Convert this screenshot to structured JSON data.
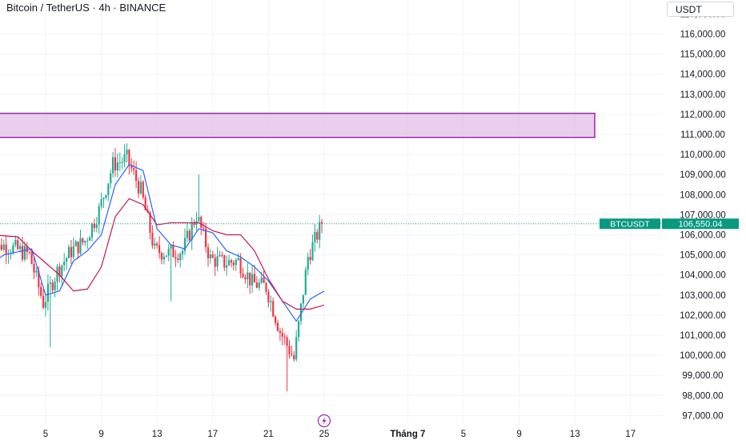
{
  "header": {
    "symbol_title": "Bitcoin / TetherUS · 4h · BINANCE",
    "currency": "USDT"
  },
  "colors": {
    "up": "#22ab94",
    "down": "#f23645",
    "fast_line": "#2962ff",
    "slow_line": "#c2185b",
    "zone_fill": "#e1bee7",
    "zone_border": "#9c27b0",
    "price_tag": "#089981"
  },
  "price_tag": {
    "label": "BTCUSDT",
    "value": "106,550.04",
    "price": 106550
  },
  "resistance_zone": {
    "from_price": 110850,
    "to_price": 112050,
    "from_date": "06-01",
    "to_date": "07-15"
  },
  "chart_data": {
    "type": "candlestick",
    "timeframe": "4h",
    "grid": true,
    "y_axis": {
      "ylim": [
        96500,
        117000
      ],
      "ticks": [
        "97,000.00",
        "98,000.00",
        "99,000.00",
        "100,000.00",
        "101,000.00",
        "102,000.00",
        "103,000.00",
        "104,000.00",
        "105,000.00",
        "106,000.00",
        "107,000.00",
        "108,000.00",
        "109,000.00",
        "110,000.00",
        "111,000.00",
        "112,000.00",
        "113,000.00",
        "114,000.00",
        "115,000.00",
        "116,000.00"
      ],
      "tick_values": [
        97000,
        98000,
        99000,
        100000,
        101000,
        102000,
        103000,
        104000,
        105000,
        106000,
        107000,
        108000,
        109000,
        110000,
        111000,
        112000,
        113000,
        114000,
        115000,
        116000
      ]
    },
    "x_axis": {
      "ticks": [
        {
          "label": "5",
          "date": "06-05"
        },
        {
          "label": "9",
          "date": "06-09"
        },
        {
          "label": "13",
          "date": "06-13"
        },
        {
          "label": "17",
          "date": "06-17"
        },
        {
          "label": "21",
          "date": "06-21"
        },
        {
          "label": "25",
          "date": "06-25"
        },
        {
          "label": "Tháng 7",
          "date": "07-01"
        },
        {
          "label": "5",
          "date": "07-05"
        },
        {
          "label": "9",
          "date": "07-09"
        },
        {
          "label": "13",
          "date": "07-13"
        },
        {
          "label": "17",
          "date": "07-17"
        }
      ]
    },
    "day_keyframes": [
      {
        "date": "06-01",
        "close": 104600
      },
      {
        "date": "06-02",
        "close": 105500
      },
      {
        "date": "06-03",
        "close": 105300
      },
      {
        "date": "06-04",
        "close": 105000
      },
      {
        "date": "06-05",
        "close": 102600
      },
      {
        "date": "06-06",
        "close": 104200
      },
      {
        "date": "06-07",
        "close": 105200
      },
      {
        "date": "06-08",
        "close": 105700
      },
      {
        "date": "06-09",
        "close": 107200
      },
      {
        "date": "06-10",
        "close": 109500
      },
      {
        "date": "06-11",
        "close": 109800
      },
      {
        "date": "06-12",
        "close": 108200
      },
      {
        "date": "06-13",
        "close": 105200
      },
      {
        "date": "06-14",
        "close": 105100
      },
      {
        "date": "06-15",
        "close": 105200
      },
      {
        "date": "06-16",
        "close": 107000
      },
      {
        "date": "06-17",
        "close": 104800
      },
      {
        "date": "06-18",
        "close": 104600
      },
      {
        "date": "06-19",
        "close": 104700
      },
      {
        "date": "06-20",
        "close": 103600
      },
      {
        "date": "06-21",
        "close": 103400
      },
      {
        "date": "06-22",
        "close": 101200
      },
      {
        "date": "06-23",
        "close": 99800
      },
      {
        "date": "06-24",
        "close": 104900
      },
      {
        "date": "06-25",
        "close": 106550
      }
    ],
    "indicators": [
      {
        "name": "",
        "role": "fast_line",
        "points": [
          [
            "06-01",
            104500
          ],
          [
            "06-02",
            105000
          ],
          [
            "06-04",
            105300
          ],
          [
            "06-05",
            103000
          ],
          [
            "06-06",
            103200
          ],
          [
            "06-07",
            104700
          ],
          [
            "06-08",
            105200
          ],
          [
            "06-09",
            106000
          ],
          [
            "06-10",
            108500
          ],
          [
            "06-11",
            109500
          ],
          [
            "06-12",
            109200
          ],
          [
            "06-13",
            106300
          ],
          [
            "06-14",
            105500
          ],
          [
            "06-15",
            105300
          ],
          [
            "06-16",
            106300
          ],
          [
            "06-17",
            106100
          ],
          [
            "06-18",
            105200
          ],
          [
            "06-19",
            104900
          ],
          [
            "06-20",
            104400
          ],
          [
            "06-21",
            103700
          ],
          [
            "06-22",
            102700
          ],
          [
            "06-23",
            101700
          ],
          [
            "06-24",
            102800
          ],
          [
            "06-25",
            103200
          ]
        ]
      },
      {
        "name": "",
        "role": "slow_line",
        "points": [
          [
            "06-01",
            106000
          ],
          [
            "06-03",
            105900
          ],
          [
            "06-04",
            105200
          ],
          [
            "06-05",
            104600
          ],
          [
            "06-06",
            104000
          ],
          [
            "06-07",
            103200
          ],
          [
            "06-08",
            103300
          ],
          [
            "06-09",
            104400
          ],
          [
            "06-10",
            106900
          ],
          [
            "06-11",
            107800
          ],
          [
            "06-12",
            107500
          ],
          [
            "06-13",
            106500
          ],
          [
            "06-14",
            106600
          ],
          [
            "06-15",
            106600
          ],
          [
            "06-16",
            106600
          ],
          [
            "06-17",
            106200
          ],
          [
            "06-18",
            106000
          ],
          [
            "06-19",
            106000
          ],
          [
            "06-20",
            105200
          ],
          [
            "06-21",
            103800
          ],
          [
            "06-22",
            102700
          ],
          [
            "06-23",
            102300
          ],
          [
            "06-24",
            102300
          ],
          [
            "06-25",
            102500
          ]
        ]
      }
    ]
  }
}
